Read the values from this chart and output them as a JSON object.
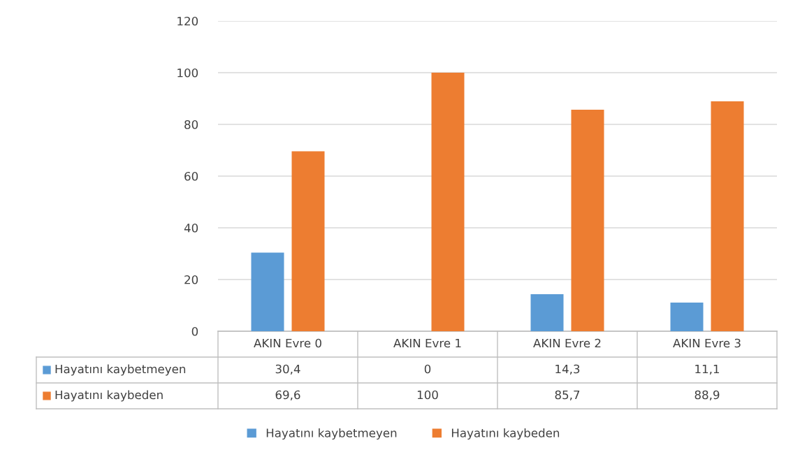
{
  "chart_data": {
    "type": "bar",
    "categories": [
      "AKIN Evre 0",
      "AKIN Evre 1",
      "AKIN Evre 2",
      "AKIN Evre 3"
    ],
    "series": [
      {
        "name": "Hayatını kaybetmeyen",
        "color": "#5b9bd5",
        "values": [
          30.4,
          0,
          14.3,
          11.1
        ],
        "value_labels": [
          "30,4",
          "0",
          "14,3",
          "11,1"
        ]
      },
      {
        "name": "Hayatını kaybeden",
        "color": "#ed7d31",
        "values": [
          69.6,
          100,
          85.7,
          88.9
        ],
        "value_labels": [
          "69,6",
          "100",
          "85,7",
          "88,9"
        ]
      }
    ],
    "ylim": [
      0,
      120
    ],
    "yticks": [
      0,
      20,
      40,
      60,
      80,
      100,
      120
    ],
    "grid": "y",
    "legend": "bottom"
  }
}
